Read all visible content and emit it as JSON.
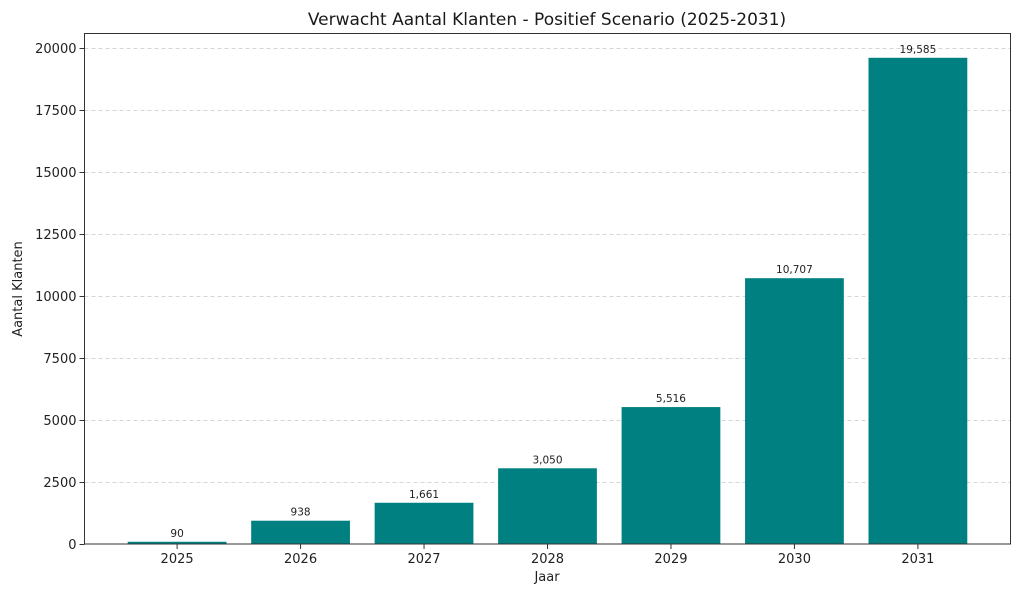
{
  "chart_data": {
    "type": "bar",
    "title": "Verwacht Aantal Klanten - Positief Scenario (2025-2031)",
    "xlabel": "Jaar",
    "ylabel": "Aantal Klanten",
    "categories": [
      "2025",
      "2026",
      "2027",
      "2028",
      "2029",
      "2030",
      "2031"
    ],
    "values": [
      90,
      938,
      1661,
      3050,
      5516,
      10707,
      19585
    ],
    "data_labels": [
      "90",
      "938",
      "1,661",
      "3,050",
      "5,516",
      "10,707",
      "19,585"
    ],
    "ylim": [
      0,
      20564
    ],
    "yticks": [
      0,
      2500,
      5000,
      7500,
      10000,
      12500,
      15000,
      17500,
      20000
    ],
    "ytick_labels": [
      "0",
      "2500",
      "5000",
      "7500",
      "10000",
      "12500",
      "15000",
      "17500",
      "20000"
    ],
    "grid": "y-dashed",
    "bar_color": "#008080",
    "legend": "none"
  }
}
